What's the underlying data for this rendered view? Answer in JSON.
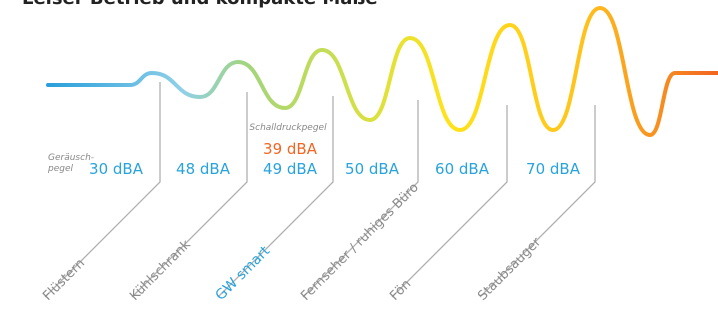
{
  "title": "Leiser Betrieb und kompakte Maße",
  "noise_label": [
    "Geräusch-",
    "pegel"
  ],
  "levels": [
    "30 dBA",
    "48 dBA",
    "49 dBA",
    "50 dBA",
    "60 dBA",
    "70 dBA"
  ],
  "pressure_label": "Schalldruckpegel",
  "pressure_value": "39 dBA",
  "sources": [
    "Flüstern",
    "Kühlschrank",
    "GW smart",
    "Fernseher / ruhiges Büro",
    "Fön",
    "Staubsauger"
  ]
}
